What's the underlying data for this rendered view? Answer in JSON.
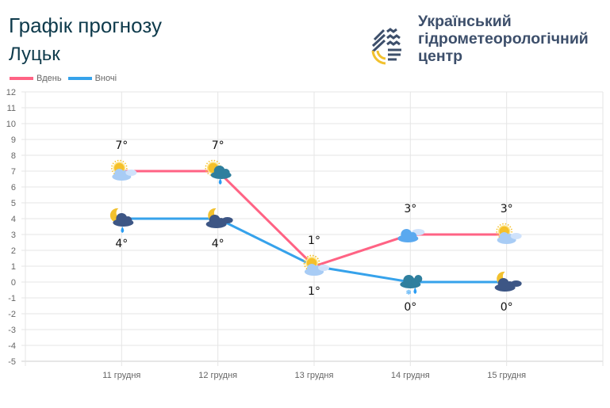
{
  "header": {
    "title": "Графік прогнозу",
    "city": "Луцьк"
  },
  "org": {
    "line1": "Український",
    "line2": "гідрометеорологічний",
    "line3": "центр"
  },
  "chart_data": {
    "type": "line",
    "categories": [
      "11 грудня",
      "12 грудня",
      "13 грудня",
      "14 грудня",
      "15 грудня"
    ],
    "ylim": [
      -5,
      12
    ],
    "yticks": [
      12,
      11,
      10,
      9,
      8,
      7,
      6,
      5,
      4,
      3,
      2,
      1,
      0,
      -1,
      -2,
      -3,
      -4,
      -5
    ],
    "grid": true,
    "legend": "top-left",
    "series": [
      {
        "name": "Вдень",
        "color": "#ff6384",
        "values": [
          7,
          7,
          1,
          3,
          3
        ],
        "labels": [
          "7°",
          "7°",
          "1°",
          "3°",
          "3°"
        ],
        "icons": [
          "sun-cloud-icon",
          "sun-cloud-rain-icon",
          "sun-cloud-icon",
          "cloud-icon",
          "sun-cloud-icon"
        ]
      },
      {
        "name": "Вночі",
        "color": "#36a2eb",
        "values": [
          4,
          4,
          1,
          0,
          0
        ],
        "labels": [
          "4°",
          "4°",
          "1°",
          "0°",
          "0°"
        ],
        "icons": [
          "moon-cloud-rain-icon",
          "moon-cloud-icon",
          "sun-cloud-icon",
          "cloud-rain-snow-icon",
          "moon-cloud-icon"
        ]
      }
    ]
  }
}
